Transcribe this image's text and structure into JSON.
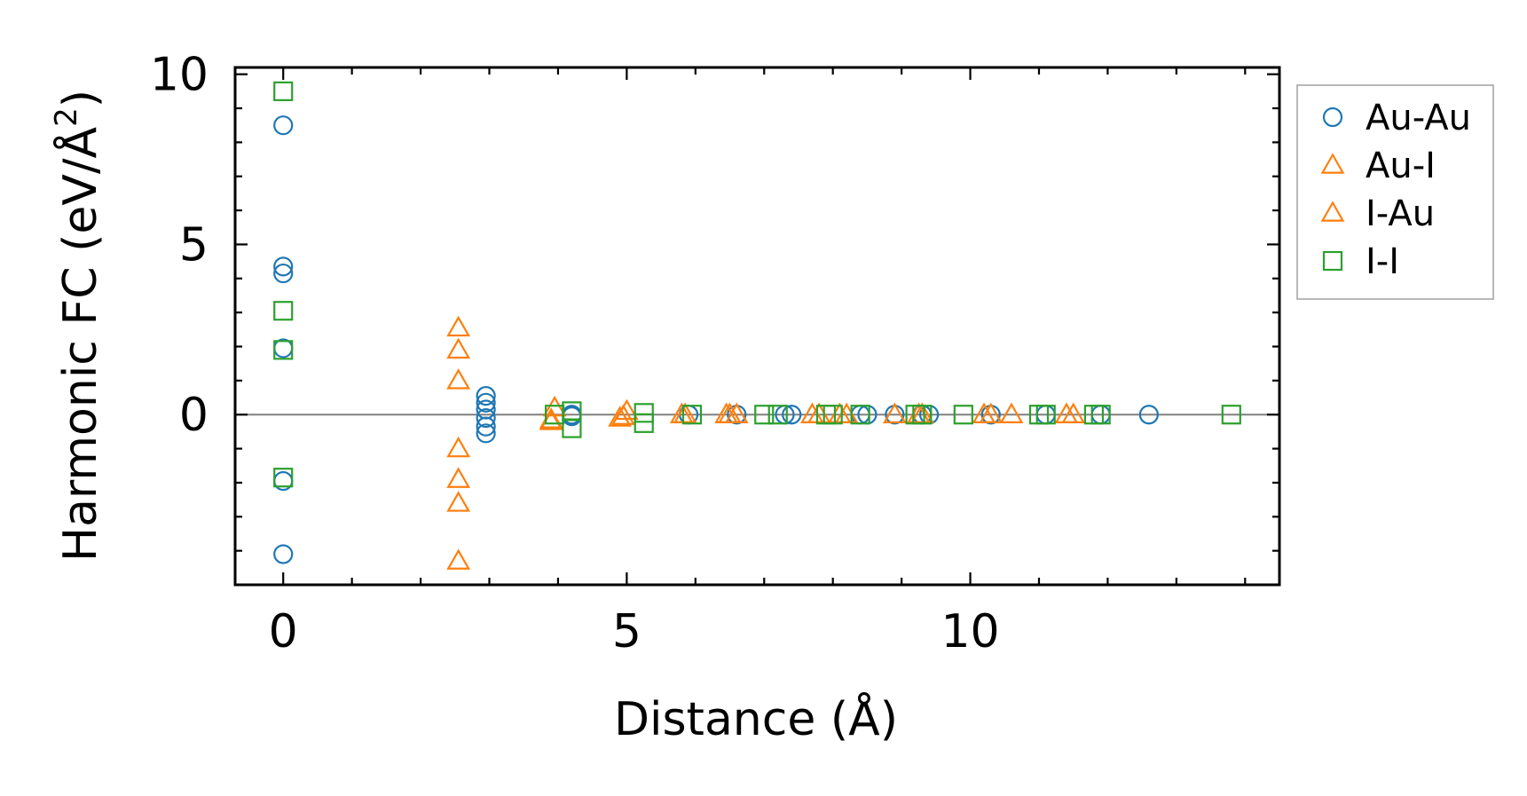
{
  "chart_data": {
    "type": "scatter",
    "title": "",
    "xlabel": "Distance (Å)",
    "ylabel": "Harmonic FC (eV/Å",
    "ylabel_sup": "2",
    "ylabel_close": ")",
    "xlim": [
      -0.7,
      14.5
    ],
    "ylim": [
      -5,
      10.2
    ],
    "xticks": [
      0,
      5,
      10
    ],
    "yticks": [
      0,
      5,
      10
    ],
    "xtick_labels": [
      "0",
      "5",
      "10"
    ],
    "ytick_labels": [
      "0",
      "5",
      "10"
    ],
    "zero_line": true,
    "legend_position": "outside-right",
    "series": [
      {
        "name": "Au-Au",
        "marker": "circle",
        "filled": false,
        "color": "#1f77b4",
        "points": [
          [
            0,
            8.5
          ],
          [
            0,
            4.35
          ],
          [
            0,
            4.15
          ],
          [
            0,
            1.95
          ],
          [
            0,
            -1.95
          ],
          [
            0,
            -4.1
          ],
          [
            2.95,
            0.55
          ],
          [
            2.95,
            0.35
          ],
          [
            2.95,
            0.15
          ],
          [
            2.95,
            -0.1
          ],
          [
            2.95,
            -0.35
          ],
          [
            2.95,
            -0.55
          ],
          [
            4.2,
            0.0
          ],
          [
            4.2,
            -0.05
          ],
          [
            5.9,
            0.0
          ],
          [
            6.6,
            0.0
          ],
          [
            7.3,
            0.0
          ],
          [
            7.4,
            0.0
          ],
          [
            8.4,
            0.0
          ],
          [
            8.5,
            0.0
          ],
          [
            8.9,
            0.0
          ],
          [
            9.3,
            0.0
          ],
          [
            9.4,
            0.0
          ],
          [
            10.3,
            0.0
          ],
          [
            11.1,
            0.0
          ],
          [
            11.9,
            0.0
          ],
          [
            12.6,
            0.0
          ]
        ]
      },
      {
        "name": "Au-I",
        "marker": "triangle",
        "filled": false,
        "color": "#ff7f0e",
        "points": [
          [
            2.55,
            2.55
          ],
          [
            2.55,
            1.9
          ],
          [
            2.55,
            1.0
          ],
          [
            2.55,
            -1.0
          ],
          [
            2.55,
            -1.9
          ],
          [
            2.55,
            -2.6
          ],
          [
            2.55,
            -4.3
          ],
          [
            3.9,
            -0.2
          ],
          [
            3.95,
            0.2
          ],
          [
            4.9,
            -0.1
          ],
          [
            5.0,
            0.1
          ],
          [
            5.8,
            0.0
          ],
          [
            6.5,
            0.0
          ],
          [
            6.6,
            0.0
          ],
          [
            7.7,
            0.0
          ],
          [
            8.1,
            0.0
          ],
          [
            8.9,
            0.0
          ],
          [
            9.3,
            0.0
          ],
          [
            10.2,
            0.0
          ],
          [
            10.6,
            0.0
          ],
          [
            11.4,
            0.0
          ]
        ]
      },
      {
        "name": "I-Au",
        "marker": "triangle",
        "filled": false,
        "color": "#ff7f0e",
        "points": [
          [
            3.9,
            -0.15
          ],
          [
            4.95,
            -0.05
          ],
          [
            5.85,
            0.0
          ],
          [
            6.45,
            0.0
          ],
          [
            7.8,
            0.0
          ],
          [
            8.2,
            0.0
          ],
          [
            9.25,
            0.0
          ],
          [
            10.3,
            0.0
          ],
          [
            11.5,
            0.0
          ]
        ]
      },
      {
        "name": "I-I",
        "marker": "square",
        "filled": false,
        "color": "#2ca02c",
        "points": [
          [
            0,
            9.5
          ],
          [
            0,
            3.05
          ],
          [
            0,
            1.9
          ],
          [
            0,
            -1.85
          ],
          [
            3.95,
            0.0
          ],
          [
            4.2,
            0.1
          ],
          [
            4.2,
            -0.4
          ],
          [
            5.25,
            0.05
          ],
          [
            5.25,
            -0.25
          ],
          [
            5.95,
            0.0
          ],
          [
            7.0,
            0.0
          ],
          [
            7.2,
            0.0
          ],
          [
            7.9,
            0.0
          ],
          [
            8.0,
            0.0
          ],
          [
            8.4,
            0.0
          ],
          [
            9.2,
            0.0
          ],
          [
            9.3,
            0.0
          ],
          [
            9.9,
            0.0
          ],
          [
            11.0,
            0.0
          ],
          [
            11.1,
            0.0
          ],
          [
            11.8,
            0.0
          ],
          [
            11.9,
            0.0
          ],
          [
            13.8,
            0.0
          ]
        ]
      }
    ]
  }
}
